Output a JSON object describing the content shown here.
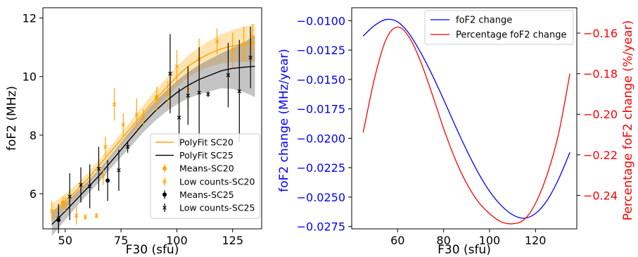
{
  "chart_data": [
    {
      "type": "scatter",
      "xlabel": "F30 (sfu)",
      "ylabel": "foF2 (MHz)",
      "xlim": [
        40,
        138
      ],
      "ylim": [
        4.8,
        12.35
      ],
      "xticks": [
        50,
        75,
        100,
        125
      ],
      "yticks": [
        6,
        8,
        10,
        12
      ],
      "legend_position": "lower-right",
      "legend": [
        "PolyFit SC20",
        "PolyFit SC25",
        "Means-SC20",
        "Low counts-SC20",
        "Means-SC25",
        "Low counts-SC25"
      ],
      "colors": {
        "sc20": "#ffa500",
        "sc25": "#000000"
      },
      "fits": [
        {
          "name": "PolyFit SC20",
          "x": [
            44,
            50,
            55,
            60,
            65,
            70,
            75,
            80,
            85,
            90,
            95,
            100,
            105,
            110,
            115,
            120,
            125,
            130,
            135
          ],
          "y": [
            5.35,
            5.75,
            6.1,
            6.5,
            6.95,
            7.4,
            7.85,
            8.3,
            8.75,
            9.2,
            9.6,
            10.0,
            10.35,
            10.6,
            10.8,
            10.95,
            11.05,
            11.1,
            11.15
          ],
          "band": [
            0.3,
            0.25,
            0.22,
            0.2,
            0.2,
            0.2,
            0.22,
            0.25,
            0.27,
            0.3,
            0.33,
            0.35,
            0.38,
            0.4,
            0.45,
            0.5,
            0.55,
            0.6,
            0.65
          ]
        },
        {
          "name": "PolyFit SC25",
          "x": [
            44,
            50,
            55,
            60,
            65,
            70,
            75,
            80,
            85,
            90,
            95,
            100,
            105,
            110,
            115,
            120,
            125,
            130,
            135
          ],
          "y": [
            4.95,
            5.4,
            5.8,
            6.2,
            6.6,
            7.05,
            7.5,
            7.95,
            8.4,
            8.8,
            9.15,
            9.45,
            9.7,
            9.9,
            10.05,
            10.2,
            10.28,
            10.32,
            10.35
          ],
          "band": [
            0.4,
            0.3,
            0.25,
            0.22,
            0.22,
            0.22,
            0.25,
            0.28,
            0.3,
            0.33,
            0.36,
            0.4,
            0.45,
            0.5,
            0.55,
            0.6,
            0.7,
            0.85,
            1.05
          ]
        }
      ],
      "means_sc20": [
        {
          "x": 49,
          "y": 5.7,
          "err": 0.2
        },
        {
          "x": 91,
          "y": 9.3,
          "err": 0.2
        }
      ],
      "low_counts_sc20": [
        {
          "x": 44,
          "y": 5.4,
          "err": 0.35
        },
        {
          "x": 50,
          "y": 5.65,
          "err": 0.25
        },
        {
          "x": 55,
          "y": 5.25,
          "err": 0.3
        },
        {
          "x": 59,
          "y": 5.2,
          "err": 0.1
        },
        {
          "x": 64,
          "y": 5.25,
          "err": 0.1
        },
        {
          "x": 67,
          "y": 6.6,
          "err": 0.3
        },
        {
          "x": 68,
          "y": 7.6,
          "err": 0.35
        },
        {
          "x": 72,
          "y": 9.05,
          "err": 0.55
        },
        {
          "x": 76,
          "y": 8.35,
          "err": 0.4
        },
        {
          "x": 82,
          "y": 8.7,
          "err": 0.55
        },
        {
          "x": 85,
          "y": 8.6,
          "err": 0.3
        },
        {
          "x": 91,
          "y": 9.25,
          "err": 0.4
        },
        {
          "x": 96,
          "y": 9.4,
          "err": 0.45
        },
        {
          "x": 100,
          "y": 10.35,
          "err": 0.55
        },
        {
          "x": 105,
          "y": 9.55,
          "err": 0.7
        },
        {
          "x": 110,
          "y": 10.6,
          "err": 0.7
        },
        {
          "x": 118,
          "y": 11.2,
          "err": 0.45
        },
        {
          "x": 125,
          "y": 10.9,
          "err": 0.6
        },
        {
          "x": 130,
          "y": 11.1,
          "err": 0.6
        },
        {
          "x": 134,
          "y": 11.35,
          "err": 0.45
        }
      ],
      "means_sc25": [
        {
          "x": 47,
          "y": 5.1,
          "err": 0.3
        },
        {
          "x": 69,
          "y": 6.45,
          "err": 0.7
        }
      ],
      "low_counts_sc25": [
        {
          "x": 47,
          "y": 5.15,
          "err": 0.5
        },
        {
          "x": 52,
          "y": 5.9,
          "err": 0.8
        },
        {
          "x": 57,
          "y": 6.3,
          "err": 0.6
        },
        {
          "x": 61,
          "y": 6.25,
          "err": 0.75
        },
        {
          "x": 65,
          "y": 6.85,
          "err": 0.75
        },
        {
          "x": 74,
          "y": 6.8,
          "err": 0.7
        },
        {
          "x": 78,
          "y": 7.6,
          "err": 0.2
        },
        {
          "x": 97,
          "y": 10.1,
          "err": 1.35
        },
        {
          "x": 101,
          "y": 8.6,
          "err": 1.0
        },
        {
          "x": 105,
          "y": 9.35,
          "err": 1.0
        },
        {
          "x": 110,
          "y": 9.45,
          "err": 1.55
        },
        {
          "x": 114,
          "y": 9.4,
          "err": 0.1
        },
        {
          "x": 123,
          "y": 10.05,
          "err": 1.1
        },
        {
          "x": 128,
          "y": 9.5,
          "err": 1.75
        },
        {
          "x": 133,
          "y": 10.65,
          "err": 1.05
        }
      ],
      "tick_labels": {
        "x": [
          "50",
          "75",
          "100",
          "125"
        ],
        "y": [
          "6",
          "8",
          "10",
          "12"
        ]
      }
    },
    {
      "type": "line",
      "xlabel": "F30 (sfu)",
      "ylabel": "foF2 change (MHz/year)",
      "ylabel_right": "Percentage foF2 change (%/year)",
      "xlim": [
        40,
        138
      ],
      "ylim": [
        -0.0277,
        -0.0089
      ],
      "ylim_right": [
        -0.2565,
        -0.1475
      ],
      "xticks": [
        60,
        80,
        100,
        120
      ],
      "yticks": [
        -0.0275,
        -0.025,
        -0.0225,
        -0.02,
        -0.0175,
        -0.015,
        -0.0125,
        -0.01
      ],
      "yticks_right": [
        -0.24,
        -0.22,
        -0.2,
        -0.18,
        -0.16
      ],
      "legend_position": "upper-right",
      "legend": [
        "foF2 change",
        "Percentage foF2 change"
      ],
      "colors": {
        "left_axis": "#0000ff",
        "right_axis": "#ff0000"
      },
      "series": [
        {
          "name": "foF2 change",
          "axis": "left",
          "x": [
            45,
            50,
            55,
            60,
            65,
            70,
            75,
            80,
            85,
            90,
            95,
            100,
            105,
            110,
            115,
            120,
            125,
            130,
            135
          ],
          "y": [
            -0.0113,
            -0.0104,
            -0.0099,
            -0.0101,
            -0.0111,
            -0.0127,
            -0.0146,
            -0.0167,
            -0.0189,
            -0.021,
            -0.0229,
            -0.0245,
            -0.0257,
            -0.0265,
            -0.0268,
            -0.0264,
            -0.0253,
            -0.0235,
            -0.0212
          ]
        },
        {
          "name": "Percentage foF2 change",
          "axis": "right",
          "x": [
            45,
            50,
            55,
            60,
            65,
            70,
            75,
            80,
            85,
            90,
            95,
            100,
            105,
            110,
            115,
            120,
            125,
            130,
            135
          ],
          "y": [
            -0.209,
            -0.182,
            -0.163,
            -0.157,
            -0.162,
            -0.174,
            -0.19,
            -0.207,
            -0.222,
            -0.234,
            -0.243,
            -0.249,
            -0.253,
            -0.254,
            -0.252,
            -0.244,
            -0.23,
            -0.21,
            -0.18
          ]
        }
      ],
      "tick_labels": {
        "x": [
          "60",
          "80",
          "100",
          "120"
        ],
        "y": [
          "−0.0275",
          "−0.0250",
          "−0.0225",
          "−0.0200",
          "−0.0175",
          "−0.0150",
          "−0.0125",
          "−0.0100"
        ],
        "y_right": [
          "−0.24",
          "−0.22",
          "−0.20",
          "−0.18",
          "−0.16"
        ]
      }
    }
  ]
}
